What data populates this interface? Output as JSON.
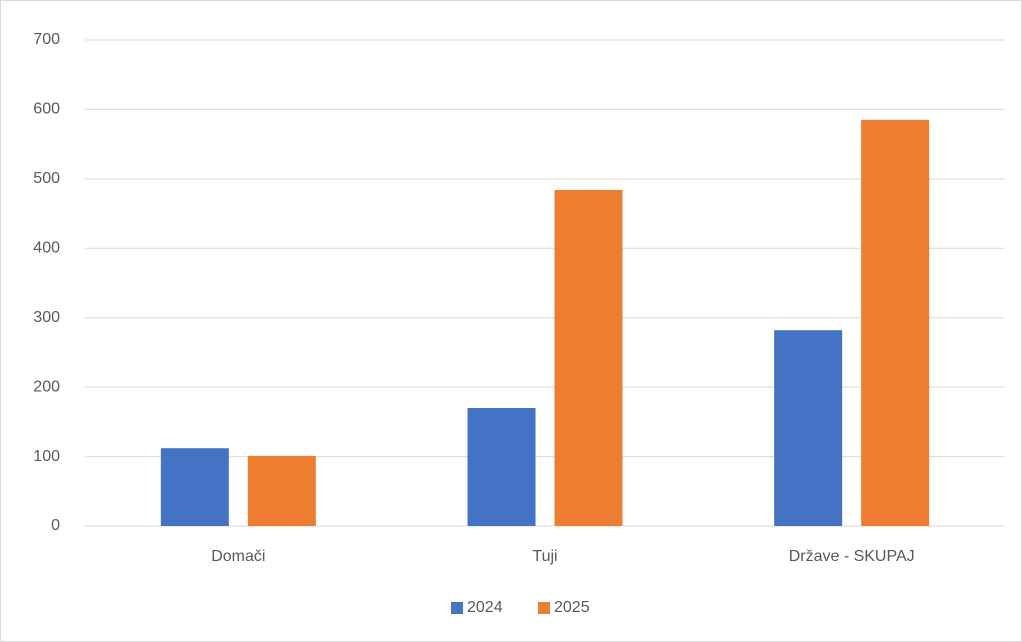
{
  "chart_data": {
    "type": "bar",
    "categories": [
      "Domači",
      "Tuji",
      "Države - SKUPAJ"
    ],
    "series": [
      {
        "name": "2024",
        "color": "#4472c4",
        "values": [
          112,
          170,
          282
        ]
      },
      {
        "name": "2025",
        "color": "#ed7d31",
        "values": [
          101,
          484,
          585
        ]
      }
    ],
    "ylim": [
      0,
      700
    ],
    "yticks": [
      0,
      100,
      200,
      300,
      400,
      500,
      600,
      700
    ],
    "grid": true,
    "legend": "bottom"
  }
}
